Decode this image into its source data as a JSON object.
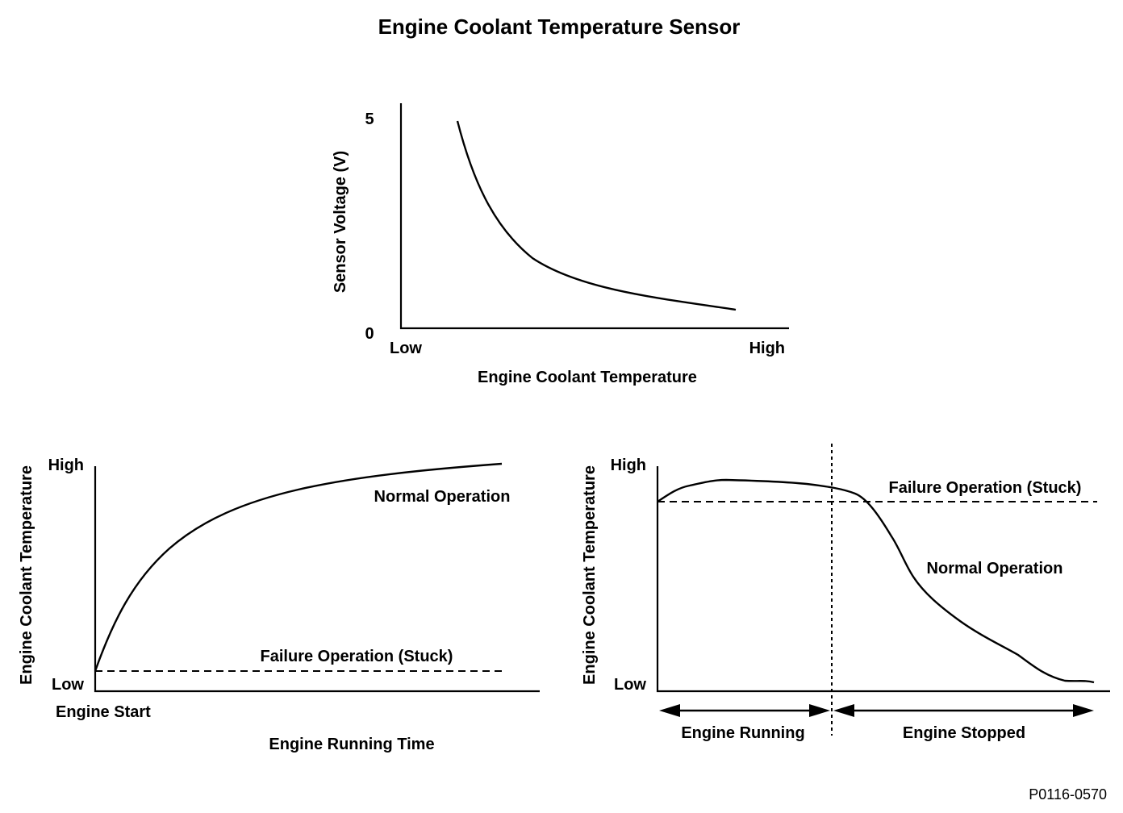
{
  "title": "Engine Coolant Temperature Sensor",
  "figure_code": "P0116-0570",
  "top_chart": {
    "ylabel": "Sensor Voltage (V)",
    "ytick_top": "5",
    "ytick_bottom": "0",
    "xtick_left": "Low",
    "xtick_right": "High",
    "xlabel": "Engine Coolant Temperature"
  },
  "left_chart": {
    "ylabel": "Engine Coolant Temperature",
    "ytick_top": "High",
    "ytick_bottom": "Low",
    "start_label": "Engine Start",
    "xlabel": "Engine Running Time",
    "normal_label": "Normal Operation",
    "failure_label": "Failure Operation (Stuck)"
  },
  "right_chart": {
    "ylabel": "Engine Coolant Temperature",
    "ytick_top": "High",
    "ytick_bottom": "Low",
    "failure_label": "Failure Operation (Stuck)",
    "normal_label": "Normal Operation",
    "running_label": "Engine Running",
    "stopped_label": "Engine Stopped"
  }
}
